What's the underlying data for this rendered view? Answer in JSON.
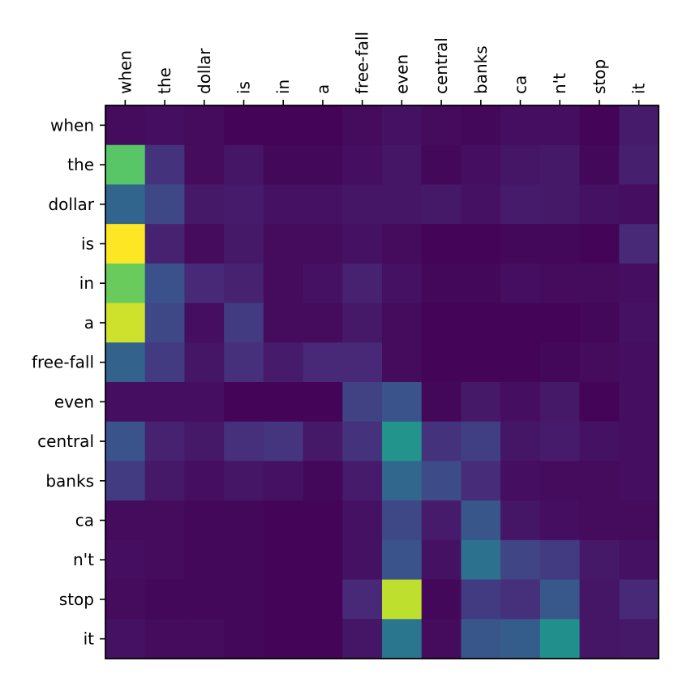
{
  "chart_data": {
    "type": "heatmap",
    "title": "",
    "xlabel": "",
    "ylabel": "",
    "x_categories": [
      "when",
      "the",
      "dollar",
      "is",
      "in",
      "a",
      "free-fall",
      "even",
      "central",
      "banks",
      "ca",
      "n't",
      "stop",
      "it"
    ],
    "y_categories": [
      "when",
      "the",
      "dollar",
      "is",
      "in",
      "a",
      "free-fall",
      "even",
      "central",
      "banks",
      "ca",
      "n't",
      "stop",
      "it"
    ],
    "x_axis_position": "top",
    "colormap": "viridis",
    "value_range": [
      0,
      1
    ],
    "grid": false,
    "legend": "none",
    "values": [
      [
        0.03,
        0.04,
        0.03,
        0.01,
        0.01,
        0.01,
        0.03,
        0.05,
        0.03,
        0.02,
        0.04,
        0.04,
        0.01,
        0.08
      ],
      [
        0.74,
        0.15,
        0.03,
        0.06,
        0.02,
        0.02,
        0.04,
        0.06,
        0.02,
        0.04,
        0.06,
        0.07,
        0.02,
        0.09
      ],
      [
        0.33,
        0.22,
        0.07,
        0.08,
        0.05,
        0.05,
        0.06,
        0.06,
        0.07,
        0.05,
        0.08,
        0.07,
        0.05,
        0.04
      ],
      [
        1.0,
        0.1,
        0.03,
        0.07,
        0.03,
        0.03,
        0.05,
        0.03,
        0.01,
        0.01,
        0.02,
        0.02,
        0.01,
        0.12
      ],
      [
        0.77,
        0.25,
        0.12,
        0.1,
        0.03,
        0.05,
        0.1,
        0.05,
        0.02,
        0.02,
        0.04,
        0.03,
        0.03,
        0.04
      ],
      [
        0.93,
        0.22,
        0.04,
        0.18,
        0.03,
        0.03,
        0.07,
        0.03,
        0.01,
        0.01,
        0.01,
        0.01,
        0.02,
        0.05
      ],
      [
        0.32,
        0.18,
        0.06,
        0.14,
        0.08,
        0.12,
        0.12,
        0.03,
        0.01,
        0.01,
        0.01,
        0.02,
        0.03,
        0.04
      ],
      [
        0.04,
        0.04,
        0.04,
        0.01,
        0.01,
        0.01,
        0.2,
        0.26,
        0.02,
        0.07,
        0.04,
        0.07,
        0.01,
        0.04
      ],
      [
        0.26,
        0.1,
        0.07,
        0.14,
        0.16,
        0.07,
        0.15,
        0.52,
        0.15,
        0.19,
        0.06,
        0.08,
        0.05,
        0.04
      ],
      [
        0.18,
        0.07,
        0.04,
        0.06,
        0.05,
        0.02,
        0.08,
        0.34,
        0.23,
        0.13,
        0.04,
        0.03,
        0.03,
        0.04
      ],
      [
        0.03,
        0.03,
        0.02,
        0.02,
        0.01,
        0.01,
        0.05,
        0.22,
        0.08,
        0.27,
        0.06,
        0.04,
        0.03,
        0.03
      ],
      [
        0.04,
        0.03,
        0.02,
        0.02,
        0.01,
        0.01,
        0.05,
        0.26,
        0.05,
        0.38,
        0.21,
        0.18,
        0.07,
        0.05
      ],
      [
        0.03,
        0.02,
        0.02,
        0.02,
        0.01,
        0.01,
        0.12,
        0.91,
        0.02,
        0.18,
        0.14,
        0.28,
        0.06,
        0.12
      ],
      [
        0.05,
        0.03,
        0.03,
        0.02,
        0.01,
        0.01,
        0.06,
        0.4,
        0.03,
        0.27,
        0.3,
        0.5,
        0.06,
        0.07
      ]
    ]
  }
}
